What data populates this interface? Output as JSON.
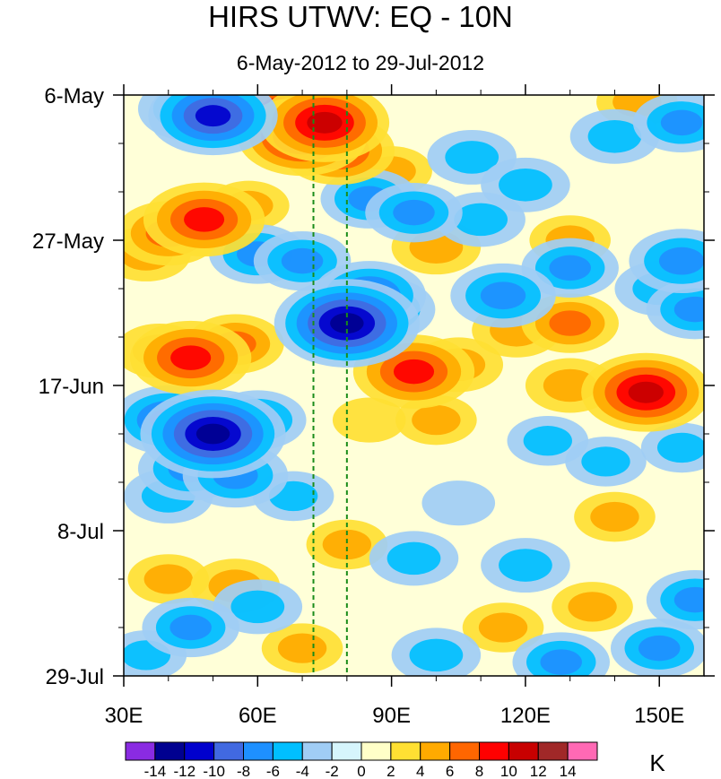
{
  "chart_data": {
    "type": "heatmap",
    "title": "HIRS UTWV: EQ - 10N",
    "subtitle": "6-May-2012 to 29-Jul-2012",
    "x_axis": {
      "range": [
        30,
        160
      ],
      "major_ticks": [
        30,
        60,
        90,
        120,
        150
      ],
      "tick_labels": [
        "30E",
        "60E",
        "90E",
        "120E",
        "150E"
      ],
      "minor_ticks": [
        40,
        50,
        70,
        80,
        100,
        110,
        130,
        140
      ]
    },
    "y_axis": {
      "start": "2012-05-06",
      "end": "2012-07-29",
      "reversed": true,
      "major_ticks": [
        "2012-05-06",
        "2012-05-27",
        "2012-06-17",
        "2012-07-08",
        "2012-07-29"
      ],
      "tick_labels": [
        "6-May",
        "27-May",
        "17-Jun",
        "8-Jul",
        "29-Jul"
      ],
      "minor_tick_interval_days": 7
    },
    "reference_lines": [
      {
        "x": 72.5,
        "color": "#1a8c1a",
        "style": "dashed"
      },
      {
        "x": 80,
        "color": "#1a8c1a",
        "style": "dashed"
      }
    ],
    "colorbar": {
      "unit": "K",
      "levels": [
        -14,
        -12,
        -10,
        -8,
        -6,
        -4,
        -2,
        0,
        2,
        4,
        6,
        8,
        10,
        12,
        14
      ],
      "labels": [
        "-14",
        "-12",
        "-10",
        "-8",
        "-6",
        "-4",
        "-2",
        "0",
        "2",
        "4",
        "6",
        "8",
        "10",
        "12",
        "14"
      ],
      "colors": [
        "#8a2be2",
        "#000090",
        "#0000cd",
        "#4169e1",
        "#1e90ff",
        "#00bfff",
        "#a0cdf5",
        "#d6f5fc",
        "#ffffc8",
        "#ffe033",
        "#ffaa00",
        "#ff6600",
        "#ff0000",
        "#c80000",
        "#a02828",
        "#ff69b4"
      ]
    },
    "features": [
      {
        "x": 70,
        "date": "2012-05-12",
        "value": 10
      },
      {
        "x": 75,
        "date": "2012-05-10",
        "value": 10
      },
      {
        "x": 78,
        "date": "2012-05-14",
        "value": 8
      },
      {
        "x": 65,
        "date": "2012-05-08",
        "value": 8
      },
      {
        "x": 48,
        "date": "2012-05-24",
        "value": 9
      },
      {
        "x": 40,
        "date": "2012-05-26",
        "value": 7
      },
      {
        "x": 35,
        "date": "2012-05-29",
        "value": 5
      },
      {
        "x": 58,
        "date": "2012-05-22",
        "value": 4
      },
      {
        "x": 45,
        "date": "2012-06-13",
        "value": 9
      },
      {
        "x": 55,
        "date": "2012-06-11",
        "value": 6
      },
      {
        "x": 38,
        "date": "2012-06-12",
        "value": 5
      },
      {
        "x": 95,
        "date": "2012-06-15",
        "value": 9
      },
      {
        "x": 105,
        "date": "2012-06-14",
        "value": 5
      },
      {
        "x": 118,
        "date": "2012-06-09",
        "value": 5
      },
      {
        "x": 130,
        "date": "2012-06-08",
        "value": 6
      },
      {
        "x": 147,
        "date": "2012-06-18",
        "value": 10
      },
      {
        "x": 130,
        "date": "2012-06-17",
        "value": 5
      },
      {
        "x": 100,
        "date": "2012-05-28",
        "value": 5
      },
      {
        "x": 130,
        "date": "2012-05-27",
        "value": 4
      },
      {
        "x": 90,
        "date": "2012-05-17",
        "value": 4
      },
      {
        "x": 100,
        "date": "2012-06-22",
        "value": 4
      },
      {
        "x": 85,
        "date": "2012-06-22",
        "value": 3
      },
      {
        "x": 80,
        "date": "2012-07-10",
        "value": 4
      },
      {
        "x": 55,
        "date": "2012-07-16",
        "value": 5
      },
      {
        "x": 40,
        "date": "2012-07-15",
        "value": 4
      },
      {
        "x": 70,
        "date": "2012-07-25",
        "value": 4
      },
      {
        "x": 115,
        "date": "2012-07-22",
        "value": 4
      },
      {
        "x": 135,
        "date": "2012-07-19",
        "value": 4
      },
      {
        "x": 140,
        "date": "2012-07-06",
        "value": 4
      },
      {
        "x": 145,
        "date": "2012-05-07",
        "value": 4
      },
      {
        "x": 50,
        "date": "2012-05-09",
        "value": -10
      },
      {
        "x": 45,
        "date": "2012-05-08",
        "value": -7
      },
      {
        "x": 60,
        "date": "2012-05-29",
        "value": -6
      },
      {
        "x": 70,
        "date": "2012-05-30",
        "value": -6
      },
      {
        "x": 85,
        "date": "2012-06-04",
        "value": -8
      },
      {
        "x": 80,
        "date": "2012-06-08",
        "value": -12
      },
      {
        "x": 88,
        "date": "2012-06-06",
        "value": -7
      },
      {
        "x": 50,
        "date": "2012-06-24",
        "value": -12
      },
      {
        "x": 40,
        "date": "2012-06-22",
        "value": -8
      },
      {
        "x": 60,
        "date": "2012-06-22",
        "value": -6
      },
      {
        "x": 45,
        "date": "2012-06-29",
        "value": -7
      },
      {
        "x": 55,
        "date": "2012-06-30",
        "value": -7
      },
      {
        "x": 40,
        "date": "2012-07-03",
        "value": -5
      },
      {
        "x": 85,
        "date": "2012-05-21",
        "value": -6
      },
      {
        "x": 95,
        "date": "2012-05-23",
        "value": -6
      },
      {
        "x": 110,
        "date": "2012-05-24",
        "value": -5
      },
      {
        "x": 115,
        "date": "2012-06-04",
        "value": -7
      },
      {
        "x": 130,
        "date": "2012-05-31",
        "value": -6
      },
      {
        "x": 140,
        "date": "2012-05-12",
        "value": -5
      },
      {
        "x": 155,
        "date": "2012-05-10",
        "value": -6
      },
      {
        "x": 158,
        "date": "2012-06-06",
        "value": -6
      },
      {
        "x": 150,
        "date": "2012-06-03",
        "value": -5
      },
      {
        "x": 155,
        "date": "2012-05-30",
        "value": -7
      },
      {
        "x": 108,
        "date": "2012-05-15",
        "value": -5
      },
      {
        "x": 120,
        "date": "2012-05-19",
        "value": -5
      },
      {
        "x": 95,
        "date": "2012-07-12",
        "value": -5
      },
      {
        "x": 120,
        "date": "2012-07-13",
        "value": -5
      },
      {
        "x": 60,
        "date": "2012-07-19",
        "value": -5
      },
      {
        "x": 45,
        "date": "2012-07-22",
        "value": -6
      },
      {
        "x": 35,
        "date": "2012-07-26",
        "value": -4
      },
      {
        "x": 100,
        "date": "2012-07-26",
        "value": -5
      },
      {
        "x": 128,
        "date": "2012-07-27",
        "value": -6
      },
      {
        "x": 150,
        "date": "2012-07-25",
        "value": -6
      },
      {
        "x": 158,
        "date": "2012-07-18",
        "value": -6
      },
      {
        "x": 68,
        "date": "2012-07-03",
        "value": -4
      },
      {
        "x": 125,
        "date": "2012-06-25",
        "value": -4
      },
      {
        "x": 138,
        "date": "2012-06-28",
        "value": -4
      },
      {
        "x": 155,
        "date": "2012-06-26",
        "value": -4
      },
      {
        "x": 105,
        "date": "2012-07-04",
        "value": -3
      }
    ]
  }
}
